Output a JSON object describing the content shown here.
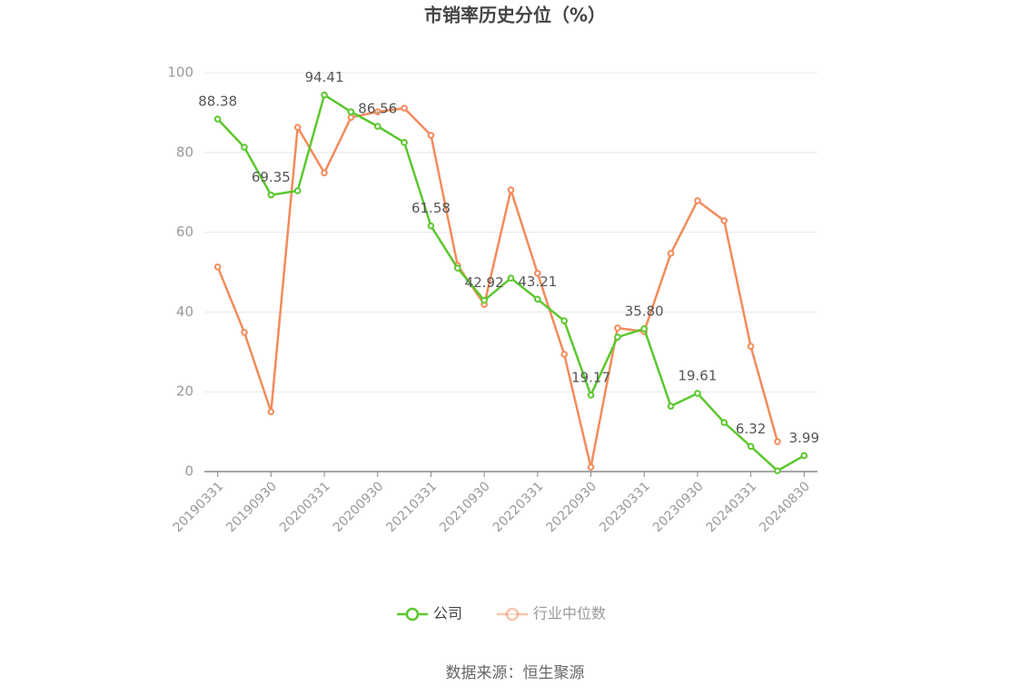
{
  "chart_data": {
    "type": "line",
    "title": "市销率历史分位（%）",
    "categories": [
      "20190331",
      null,
      "20190930",
      null,
      "20200331",
      null,
      "20200930",
      null,
      "20210331",
      null,
      "20210930",
      null,
      "20220331",
      null,
      "20220930",
      null,
      "20230331",
      null,
      "20230930",
      null,
      "20240331",
      null,
      "20240830"
    ],
    "series": [
      {
        "name": "公司",
        "color": "#5cc72e",
        "values": [
          88.38,
          81.3,
          69.35,
          70.4,
          94.41,
          90.2,
          86.56,
          82.5,
          61.58,
          51.0,
          42.92,
          48.5,
          43.21,
          37.8,
          19.17,
          33.7,
          35.8,
          16.4,
          19.61,
          12.3,
          6.32,
          0.2,
          3.99
        ],
        "value_labels": [
          "88.38",
          null,
          "69.35",
          null,
          "94.41",
          null,
          "86.56",
          null,
          "61.58",
          null,
          "42.92",
          null,
          "43.21",
          null,
          "19.17",
          null,
          "35.80",
          null,
          "19.61",
          null,
          "6.32",
          null,
          "3.99"
        ]
      },
      {
        "name": "行业中位数",
        "color": "#f28b5c",
        "values": [
          51.3,
          34.9,
          15.0,
          86.3,
          74.9,
          88.8,
          90.2,
          91.1,
          84.3,
          51.7,
          41.9,
          70.6,
          49.7,
          29.4,
          1.1,
          36.0,
          35.1,
          54.7,
          67.9,
          62.9,
          31.4,
          7.5,
          null
        ]
      }
    ],
    "ylim": [
      0,
      100
    ],
    "yticks": [
      0,
      20,
      40,
      60,
      80,
      100
    ],
    "grid": true,
    "legend": "bottom",
    "source": "数据来源：恒生聚源"
  }
}
